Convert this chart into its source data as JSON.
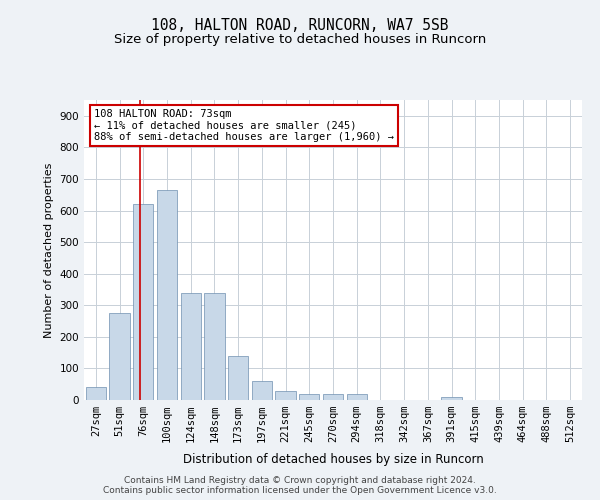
{
  "title1": "108, HALTON ROAD, RUNCORN, WA7 5SB",
  "title2": "Size of property relative to detached houses in Runcorn",
  "xlabel": "Distribution of detached houses by size in Runcorn",
  "ylabel": "Number of detached properties",
  "categories": [
    "27sqm",
    "51sqm",
    "76sqm",
    "100sqm",
    "124sqm",
    "148sqm",
    "173sqm",
    "197sqm",
    "221sqm",
    "245sqm",
    "270sqm",
    "294sqm",
    "318sqm",
    "342sqm",
    "367sqm",
    "391sqm",
    "415sqm",
    "439sqm",
    "464sqm",
    "488sqm",
    "512sqm"
  ],
  "values": [
    40,
    275,
    620,
    665,
    340,
    340,
    140,
    60,
    30,
    20,
    20,
    20,
    0,
    0,
    0,
    10,
    0,
    0,
    0,
    0,
    0
  ],
  "bar_color": "#c8d8e8",
  "bar_edge_color": "#7090b0",
  "red_line_x": 1.88,
  "annotation_text": "108 HALTON ROAD: 73sqm\n← 11% of detached houses are smaller (245)\n88% of semi-detached houses are larger (1,960) →",
  "annotation_box_color": "#ffffff",
  "annotation_border_color": "#cc0000",
  "ylim": [
    0,
    950
  ],
  "yticks": [
    0,
    100,
    200,
    300,
    400,
    500,
    600,
    700,
    800,
    900
  ],
  "background_color": "#eef2f6",
  "plot_bg_color": "#ffffff",
  "grid_color": "#c8d0d8",
  "footer": "Contains HM Land Registry data © Crown copyright and database right 2024.\nContains public sector information licensed under the Open Government Licence v3.0.",
  "title1_fontsize": 10.5,
  "title2_fontsize": 9.5,
  "xlabel_fontsize": 8.5,
  "ylabel_fontsize": 8,
  "tick_fontsize": 7.5,
  "annotation_fontsize": 7.5,
  "footer_fontsize": 6.5
}
